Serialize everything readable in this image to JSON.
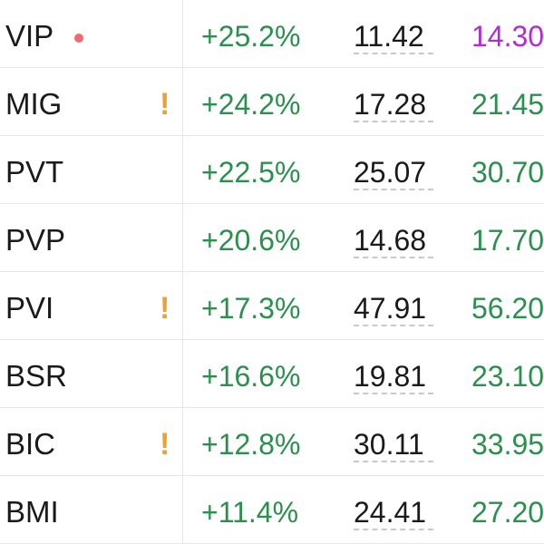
{
  "rows": [
    {
      "ticker": "VIP",
      "marker": "dot",
      "change": "+25.2%",
      "price": "11.42",
      "target": "14.30",
      "target_color": "#b22bd6"
    },
    {
      "ticker": "MIG",
      "marker": "warn",
      "change": "+24.2%",
      "price": "17.28",
      "target": "21.45",
      "target_color": "#2b8f4e"
    },
    {
      "ticker": "PVT",
      "marker": "",
      "change": "+22.5%",
      "price": "25.07",
      "target": "30.70",
      "target_color": "#2b8f4e"
    },
    {
      "ticker": "PVP",
      "marker": "",
      "change": "+20.6%",
      "price": "14.68",
      "target": "17.70",
      "target_color": "#2b8f4e"
    },
    {
      "ticker": "PVI",
      "marker": "warn",
      "change": "+17.3%",
      "price": "47.91",
      "target": "56.20",
      "target_color": "#2b8f4e"
    },
    {
      "ticker": "BSR",
      "marker": "",
      "change": "+16.6%",
      "price": "19.81",
      "target": "23.10",
      "target_color": "#2b8f4e"
    },
    {
      "ticker": "BIC",
      "marker": "warn",
      "change": "+12.8%",
      "price": "30.11",
      "target": "33.95",
      "target_color": "#2b8f4e"
    },
    {
      "ticker": "BMI",
      "marker": "",
      "change": "+11.4%",
      "price": "24.41",
      "target": "27.20",
      "target_color": "#2b8f4e"
    }
  ],
  "warn_glyph": "!",
  "colors": {
    "positive": "#2b8f4e",
    "highlight": "#b22bd6",
    "dot": "#f06b6b",
    "warning": "#f0a030",
    "text": "#1a1a1a",
    "divider": "#e6e6e6"
  }
}
